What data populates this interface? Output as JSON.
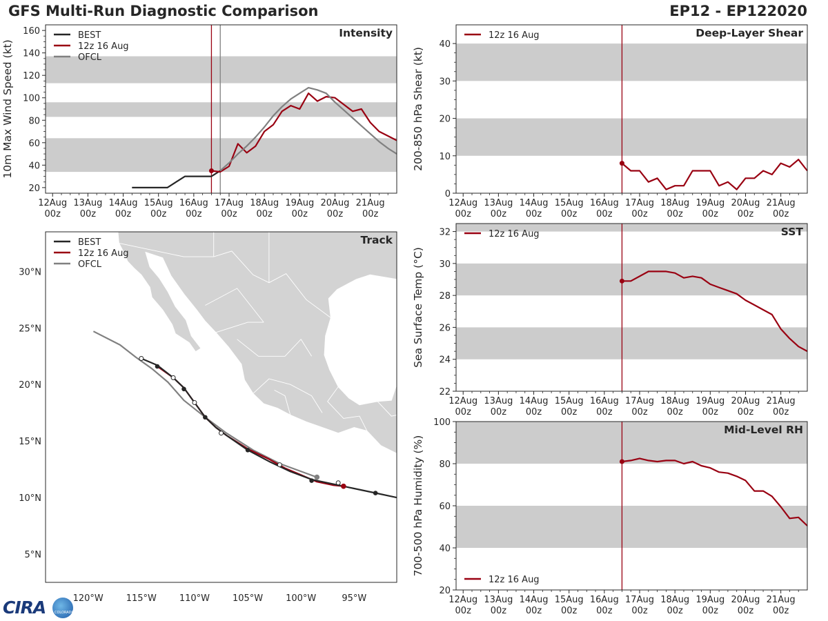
{
  "header": {
    "title": "GFS Multi-Run Diagnostic Comparison",
    "storm": "EP12 - EP122020"
  },
  "logo": {
    "text": "CIRA",
    "badge": "COLORADO"
  },
  "colors": {
    "best": "#262626",
    "run": "#990011",
    "ofcl": "#808080",
    "band": "#cccccc",
    "land": "#d3d3d3"
  },
  "time_ticks": [
    {
      "day": "12Aug",
      "hr": "00z"
    },
    {
      "day": "13Aug",
      "hr": "00z"
    },
    {
      "day": "14Aug",
      "hr": "00z"
    },
    {
      "day": "15Aug",
      "hr": "00z"
    },
    {
      "day": "16Aug",
      "hr": "00z"
    },
    {
      "day": "17Aug",
      "hr": "00z"
    },
    {
      "day": "18Aug",
      "hr": "00z"
    },
    {
      "day": "19Aug",
      "hr": "00z"
    },
    {
      "day": "20Aug",
      "hr": "00z"
    },
    {
      "day": "21Aug",
      "hr": "00z"
    }
  ],
  "chart_data": [
    {
      "id": "intensity",
      "type": "line",
      "title": "Intensity",
      "ylabel": "10m Max Wind Speed (kt)",
      "xlim": [
        -0.2,
        9.75
      ],
      "ylim": [
        15,
        165
      ],
      "yticks": [
        20,
        40,
        60,
        80,
        100,
        120,
        140,
        160
      ],
      "bands": [
        [
          34,
          64
        ],
        [
          83,
          96
        ],
        [
          113,
          137
        ]
      ],
      "vlines": [
        {
          "x": 4.5,
          "series": "run"
        },
        {
          "x": 4.75,
          "series": "ofcl"
        }
      ],
      "legend": [
        "BEST",
        "12z 16 Aug",
        "OFCL"
      ],
      "series": [
        {
          "name": "BEST",
          "key": "best",
          "x": [
            2.25,
            2.5,
            2.75,
            3.0,
            3.25,
            3.5,
            3.75,
            4.0,
            4.25,
            4.5,
            4.75
          ],
          "y": [
            20,
            20,
            20,
            20,
            20,
            25,
            30,
            30,
            30,
            30,
            35
          ]
        },
        {
          "name": "12z 16 Aug",
          "key": "run",
          "marker_first": true,
          "x": [
            4.5,
            4.75,
            5.0,
            5.25,
            5.5,
            5.75,
            6.0,
            6.25,
            6.5,
            6.75,
            7.0,
            7.25,
            7.5,
            7.75,
            8.0,
            8.25,
            8.5,
            8.75,
            9.0,
            9.25,
            9.5,
            9.75
          ],
          "y": [
            35,
            34,
            39,
            59,
            51,
            57,
            70,
            76,
            88,
            93,
            90,
            104,
            97,
            101,
            100,
            94,
            88,
            90,
            78,
            70,
            66,
            62
          ]
        },
        {
          "name": "OFCL",
          "key": "ofcl",
          "x": [
            4.75,
            5.0,
            5.25,
            5.5,
            5.75,
            6.0,
            6.25,
            6.5,
            6.75,
            7.0,
            7.25,
            7.5,
            7.75,
            8.0,
            8.25,
            8.5,
            8.75,
            9.0,
            9.25,
            9.5,
            9.75
          ],
          "y": [
            35,
            42,
            50,
            57,
            65,
            74,
            84,
            92,
            99,
            104,
            109,
            107,
            104,
            96,
            89,
            82,
            75,
            68,
            61,
            55,
            50
          ]
        }
      ]
    },
    {
      "id": "shear",
      "type": "line",
      "title": "Deep-Layer Shear",
      "ylabel": "200-850 hPa Shear (kt)",
      "xlim": [
        -0.2,
        9.75
      ],
      "ylim": [
        0,
        45
      ],
      "yticks": [
        0,
        10,
        20,
        30,
        40
      ],
      "bands": [
        [
          10,
          20
        ],
        [
          30,
          40
        ]
      ],
      "vlines": [
        {
          "x": 4.5,
          "series": "run"
        }
      ],
      "legend": [
        "12z 16 Aug"
      ],
      "series": [
        {
          "name": "12z 16 Aug",
          "key": "run",
          "marker_first": true,
          "x": [
            4.5,
            4.75,
            5.0,
            5.25,
            5.5,
            5.75,
            6.0,
            6.25,
            6.5,
            6.75,
            7.0,
            7.25,
            7.5,
            7.75,
            8.0,
            8.25,
            8.5,
            8.75,
            9.0,
            9.25,
            9.5,
            9.75
          ],
          "y": [
            8,
            6,
            6,
            3,
            4,
            1,
            2,
            2,
            6,
            6,
            6,
            2,
            3,
            1,
            4,
            4,
            6,
            5,
            8,
            7,
            9,
            6
          ]
        }
      ]
    },
    {
      "id": "sst",
      "type": "line",
      "title": "SST",
      "ylabel": "Sea Surface Temp (°C)",
      "xlim": [
        -0.2,
        9.75
      ],
      "ylim": [
        22,
        32.5
      ],
      "yticks": [
        22,
        24,
        26,
        28,
        30,
        32
      ],
      "bands": [
        [
          24,
          26
        ],
        [
          28,
          30
        ],
        [
          32,
          32.5
        ]
      ],
      "vlines": [
        {
          "x": 4.5,
          "series": "run"
        }
      ],
      "legend": [
        "12z 16 Aug"
      ],
      "series": [
        {
          "name": "12z 16 Aug",
          "key": "run",
          "marker_first": true,
          "x": [
            4.5,
            4.75,
            5.0,
            5.25,
            5.5,
            5.75,
            6.0,
            6.25,
            6.5,
            6.75,
            7.0,
            7.25,
            7.5,
            7.75,
            8.0,
            8.25,
            8.5,
            8.75,
            9.0,
            9.25,
            9.5,
            9.75
          ],
          "y": [
            28.9,
            28.9,
            29.2,
            29.5,
            29.5,
            29.5,
            29.4,
            29.1,
            29.2,
            29.1,
            28.7,
            28.5,
            28.3,
            28.1,
            27.7,
            27.4,
            27.1,
            26.8,
            25.9,
            25.3,
            24.8,
            24.5
          ]
        }
      ]
    },
    {
      "id": "rh",
      "type": "line",
      "title": "Mid-Level RH",
      "ylabel": "700-500 hPa Humidity (%)",
      "xlim": [
        -0.2,
        9.75
      ],
      "ylim": [
        20,
        100
      ],
      "yticks": [
        20,
        40,
        60,
        80,
        100
      ],
      "bands": [
        [
          40,
          60
        ],
        [
          80,
          100
        ]
      ],
      "vlines": [
        {
          "x": 4.5,
          "series": "run"
        }
      ],
      "legend": [
        "12z 16 Aug"
      ],
      "legend_pos": "bottom-left",
      "series": [
        {
          "name": "12z 16 Aug",
          "key": "run",
          "marker_first": true,
          "x": [
            4.5,
            4.75,
            5.0,
            5.25,
            5.5,
            5.75,
            6.0,
            6.25,
            6.5,
            6.75,
            7.0,
            7.25,
            7.5,
            7.75,
            8.0,
            8.25,
            8.5,
            8.75,
            9.0,
            9.25,
            9.5,
            9.75
          ],
          "y": [
            81,
            81.5,
            82.5,
            81.5,
            81,
            81.5,
            81.5,
            80,
            81,
            79,
            78,
            76,
            75.5,
            74,
            72,
            67,
            67,
            64.5,
            59.5,
            54,
            54.5,
            50.5
          ]
        }
      ]
    },
    {
      "id": "track",
      "type": "map-track",
      "title": "Track",
      "xlim": [
        -124,
        -91
      ],
      "ylim": [
        2.5,
        33.5
      ],
      "xticks": [
        -120,
        -115,
        -110,
        -105,
        -100,
        -95
      ],
      "xtick_labels": [
        "120°W",
        "115°W",
        "110°W",
        "105°W",
        "100°W",
        "95°W"
      ],
      "yticks": [
        5,
        10,
        15,
        20,
        25,
        30
      ],
      "ytick_labels": [
        "5°N",
        "10°N",
        "15°N",
        "20°N",
        "25°N",
        "30°N"
      ],
      "legend": [
        "BEST",
        "12z 16 Aug",
        "OFCL"
      ],
      "series": [
        {
          "name": "BEST",
          "key": "best",
          "lon": [
            -91.0,
            -93.0,
            -95.0,
            -96.5,
            -98.0,
            -99.0,
            -101.0,
            -103.0,
            -105.0,
            -107.0,
            -108.0,
            -109.0,
            -110.0,
            -111.0,
            -112.0,
            -113.5,
            -115.0
          ],
          "lat": [
            10.0,
            10.4,
            10.8,
            11.1,
            11.4,
            11.6,
            12.3,
            13.2,
            14.2,
            15.5,
            16.2,
            17.1,
            18.4,
            19.7,
            20.6,
            21.7,
            22.3
          ],
          "markers": [
            [
              -93.0,
              10.4,
              "filled"
            ],
            [
              -96.5,
              11.3,
              "open"
            ],
            [
              -99.0,
              11.5,
              "filled"
            ],
            [
              -102.0,
              12.9,
              "open"
            ],
            [
              -105.0,
              14.2,
              "filled"
            ],
            [
              -107.5,
              15.7,
              "open"
            ],
            [
              -109.0,
              17.1,
              "filled"
            ],
            [
              -110.0,
              18.4,
              "open"
            ],
            [
              -111.0,
              19.6,
              "filled"
            ],
            [
              -112.0,
              20.6,
              "open"
            ],
            [
              -113.5,
              21.6,
              "filled"
            ],
            [
              -115.0,
              22.3,
              "open"
            ]
          ]
        },
        {
          "name": "12z 16 Aug",
          "key": "run",
          "lon": [
            -96.0,
            -97.0,
            -98.5,
            -100.0,
            -101.5,
            -103.0,
            -105.0,
            -107.0,
            -108.0,
            -109.0,
            -110.0,
            -111.0,
            -112.0,
            -113.5
          ],
          "lat": [
            11.0,
            11.1,
            11.4,
            12.0,
            12.6,
            13.4,
            14.3,
            15.5,
            16.2,
            17.1,
            18.4,
            19.7,
            20.6,
            21.6
          ],
          "markers": [
            [
              -96.0,
              11.0,
              "run"
            ]
          ]
        },
        {
          "name": "OFCL",
          "key": "ofcl",
          "lon": [
            -98.5,
            -102.0,
            -104.5,
            -107.0,
            -109.0,
            -111.0,
            -112.5,
            -114.0,
            -115.5,
            -117.0,
            -119.5
          ],
          "lat": [
            11.8,
            13.0,
            14.2,
            15.7,
            17.1,
            18.6,
            20.2,
            21.4,
            22.4,
            23.5,
            24.7
          ],
          "markers": [
            [
              -98.5,
              11.8,
              "ofcl"
            ]
          ]
        }
      ]
    }
  ]
}
